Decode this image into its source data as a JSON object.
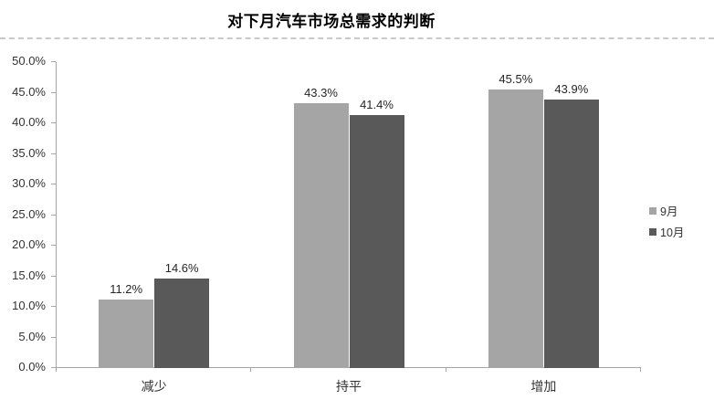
{
  "title": "对下月汽车市场总需求的判断",
  "chart_data": {
    "type": "bar",
    "title": "对下月汽车市场总需求的判断",
    "categories": [
      "减少",
      "持平",
      "增加"
    ],
    "series": [
      {
        "name": "9月",
        "color": "#a5a5a5",
        "values": [
          11.2,
          43.3,
          45.5
        ],
        "data_labels": [
          "11.2%",
          "43.3%",
          "45.5%"
        ]
      },
      {
        "name": "10月",
        "color": "#595959",
        "values": [
          14.6,
          41.4,
          43.9
        ],
        "data_labels": [
          "14.6%",
          "41.4%",
          "43.9%"
        ]
      }
    ],
    "ylim": [
      0,
      50
    ],
    "ytick_step": 5,
    "ytick_labels": [
      "0.0%",
      "5.0%",
      "10.0%",
      "15.0%",
      "20.0%",
      "25.0%",
      "30.0%",
      "35.0%",
      "40.0%",
      "45.0%",
      "50.0%"
    ],
    "value_suffix": "%",
    "grid": false,
    "legend_position": "right",
    "axis_color": "#a6a6a6",
    "text_color": "#333333"
  }
}
